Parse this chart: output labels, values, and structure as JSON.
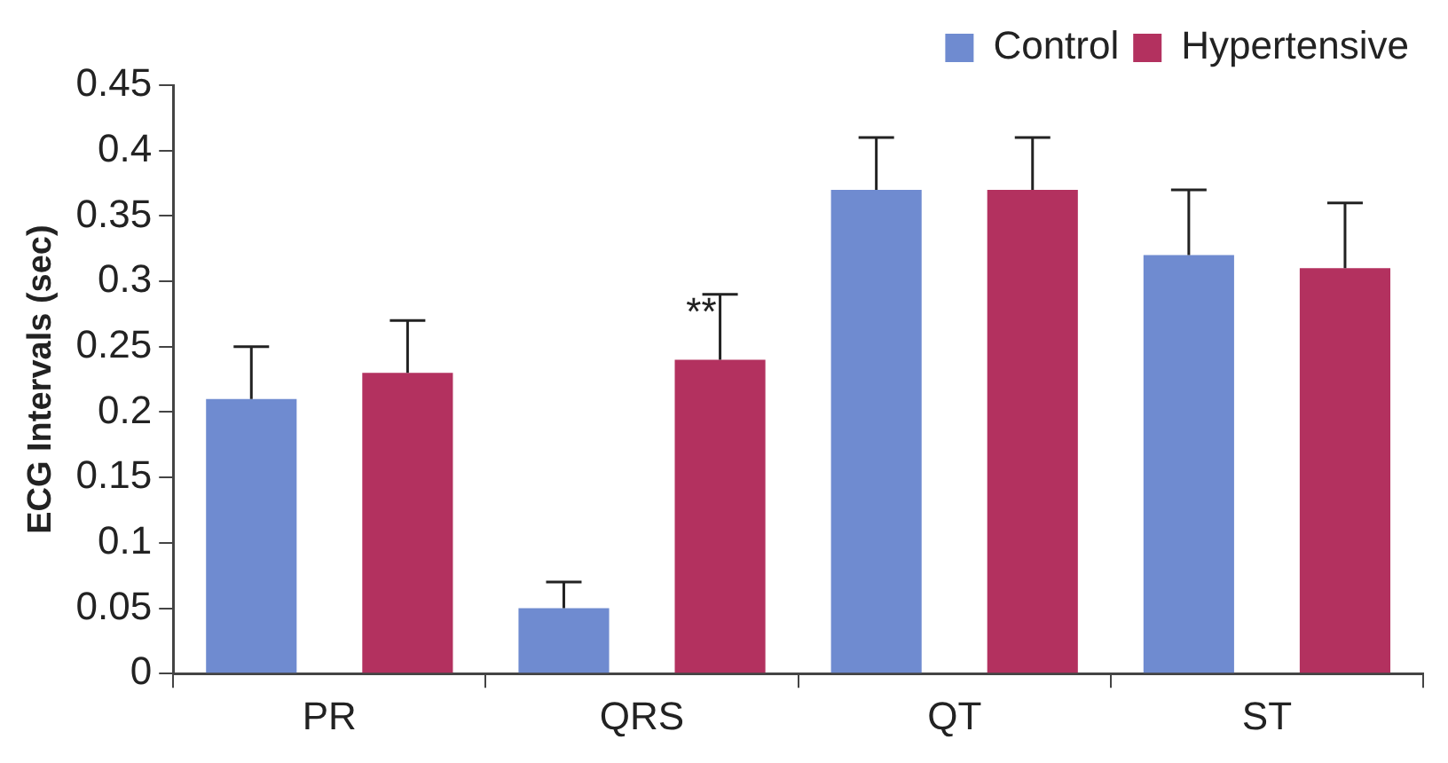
{
  "chart_data": {
    "type": "bar",
    "ylabel": "ECG Intervals (sec)",
    "categories": [
      "PR",
      "QRS",
      "QT",
      "ST"
    ],
    "series": [
      {
        "name": "Control",
        "color": "#6f8bd0",
        "values": [
          0.21,
          0.05,
          0.37,
          0.32
        ],
        "errors": [
          [
            0.21,
            0.25
          ],
          [
            0.05,
            0.07
          ],
          [
            0.37,
            0.41
          ],
          [
            0.32,
            0.37
          ]
        ]
      },
      {
        "name": "Hypertensive",
        "color": "#b3315f",
        "values": [
          0.23,
          0.24,
          0.37,
          0.31
        ],
        "errors": [
          [
            0.23,
            0.27
          ],
          [
            0.24,
            0.29
          ],
          [
            0.37,
            0.41
          ],
          [
            0.31,
            0.36
          ]
        ]
      }
    ],
    "ylim": [
      0,
      0.45
    ],
    "yticks": [
      0,
      0.05,
      0.1,
      0.15,
      0.2,
      0.25,
      0.3,
      0.35,
      0.4,
      0.45
    ],
    "grid": false,
    "legend": "top right",
    "annotations": [
      "**"
    ]
  }
}
